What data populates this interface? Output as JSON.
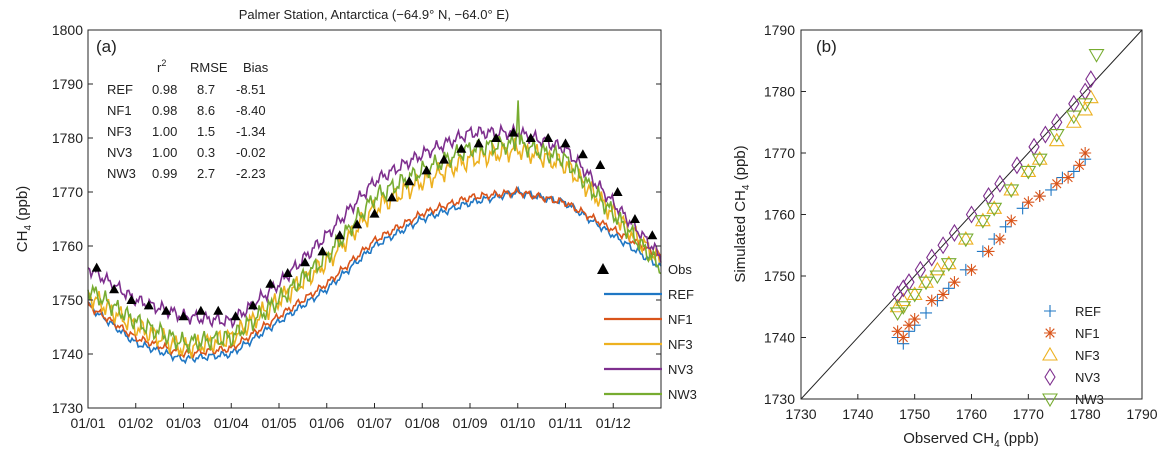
{
  "chart_data": [
    {
      "type": "line",
      "title": "Palmer Station, Antarctica (−64.9° N, −64.0° E)",
      "panel_label": "(a)",
      "xlabel": "",
      "ylabel_main": "CH",
      "ylabel_sub": "4",
      "ylabel_unit": " (ppb)",
      "ylim": [
        1730,
        1800
      ],
      "yticks": [
        "1730",
        "1740",
        "1750",
        "1760",
        "1770",
        "1780",
        "1790",
        "1800"
      ],
      "categories": [
        "01/01",
        "01/02",
        "01/03",
        "01/04",
        "01/05",
        "01/06",
        "01/07",
        "01/08",
        "01/09",
        "01/10",
        "01/11",
        "01/12"
      ],
      "x_months": [
        0,
        1,
        2,
        3,
        4,
        5,
        6,
        7,
        8,
        9,
        10,
        11
      ],
      "series": [
        {
          "name": "REF",
          "color": "#1f77c4",
          "values": [
            1749,
            1742,
            1739,
            1740,
            1746,
            1752,
            1760,
            1765,
            1768,
            1770,
            1768,
            1762
          ]
        },
        {
          "name": "NF1",
          "color": "#d9541a",
          "values": [
            1749,
            1743,
            1740,
            1741,
            1747,
            1753,
            1761,
            1766,
            1769,
            1770,
            1768,
            1763
          ]
        },
        {
          "name": "NF3",
          "color": "#edb120",
          "values": [
            1751,
            1745,
            1741,
            1743,
            1750,
            1757,
            1767,
            1772,
            1776,
            1778,
            1775,
            1766
          ]
        },
        {
          "name": "NV3",
          "color": "#7e2f8e",
          "values": [
            1756,
            1750,
            1747,
            1746,
            1753,
            1762,
            1772,
            1777,
            1781,
            1781,
            1778,
            1768
          ]
        },
        {
          "name": "NW3",
          "color": "#77ac30",
          "values": [
            1752,
            1746,
            1742,
            1743,
            1750,
            1758,
            1769,
            1774,
            1778,
            1779,
            1776,
            1766
          ]
        }
      ],
      "obs": {
        "name": "Obs",
        "values": [
          1756,
          1752,
          1750,
          1749,
          1748,
          1747,
          1748,
          1748,
          1747,
          1749,
          1753,
          1755,
          1757,
          1759,
          1762,
          1764,
          1766,
          1769,
          1772,
          1774,
          1776,
          1778,
          1779,
          1780,
          1781,
          1780,
          1780,
          1779,
          1777,
          1775,
          1770,
          1765,
          1762
        ]
      },
      "stats_table": {
        "headers": [
          "",
          "r2",
          "RMSE",
          "Bias"
        ],
        "rows": [
          [
            "REF",
            "0.98",
            "8.7",
            "-8.51"
          ],
          [
            "NF1",
            "0.98",
            "8.6",
            "-8.40"
          ],
          [
            "NF3",
            "1.00",
            "1.5",
            "-1.34"
          ],
          [
            "NV3",
            "1.00",
            "0.3",
            "-0.02"
          ],
          [
            "NW3",
            "0.99",
            "2.7",
            "-2.23"
          ]
        ]
      },
      "legend": [
        "Obs",
        "REF",
        "NF1",
        "NF3",
        "NV3",
        "NW3"
      ],
      "legend_position": "bottom-right",
      "grid": false
    },
    {
      "type": "scatter",
      "panel_label": "(b)",
      "xlabel": "Observed CH",
      "xlabel_sub": "4",
      "xlabel_unit": " (ppb)",
      "ylabel": "Simulated CH",
      "ylabel_sub": "4",
      "ylabel_unit": " (ppb)",
      "xlim": [
        1730,
        1790
      ],
      "ylim": [
        1730,
        1790
      ],
      "xticks": [
        "1730",
        "1740",
        "1750",
        "1760",
        "1770",
        "1780",
        "1790"
      ],
      "yticks": [
        "1730",
        "1740",
        "1750",
        "1760",
        "1770",
        "1780",
        "1790"
      ],
      "one_to_one_line": true,
      "series": [
        {
          "name": "REF",
          "marker": "plus",
          "color": "#1f77c4",
          "x": [
            1747,
            1748,
            1749,
            1750,
            1752,
            1754,
            1756,
            1759,
            1762,
            1764,
            1766,
            1769,
            1772,
            1774,
            1776,
            1778,
            1780
          ],
          "y": [
            1740,
            1739,
            1741,
            1742,
            1744,
            1746,
            1748,
            1751,
            1754,
            1756,
            1758,
            1761,
            1763,
            1764,
            1766,
            1767,
            1769
          ]
        },
        {
          "name": "NF1",
          "marker": "asterisk",
          "color": "#d9541a",
          "x": [
            1747,
            1748,
            1749,
            1750,
            1753,
            1755,
            1757,
            1760,
            1763,
            1765,
            1767,
            1770,
            1772,
            1775,
            1777,
            1779,
            1780
          ],
          "y": [
            1741,
            1740,
            1742,
            1743,
            1746,
            1747,
            1749,
            1751,
            1754,
            1756,
            1759,
            1762,
            1763,
            1765,
            1766,
            1768,
            1770
          ]
        },
        {
          "name": "NF3",
          "marker": "triangle-up",
          "color": "#edb120",
          "x": [
            1747,
            1748,
            1750,
            1752,
            1754,
            1756,
            1759,
            1762,
            1764,
            1767,
            1770,
            1772,
            1775,
            1778,
            1780,
            1781
          ],
          "y": [
            1745,
            1746,
            1747,
            1749,
            1751,
            1752,
            1756,
            1759,
            1761,
            1764,
            1767,
            1769,
            1772,
            1775,
            1777,
            1779
          ]
        },
        {
          "name": "NV3",
          "marker": "diamond",
          "color": "#7e2f8e",
          "x": [
            1747,
            1748,
            1749,
            1751,
            1753,
            1755,
            1757,
            1760,
            1763,
            1765,
            1768,
            1771,
            1773,
            1775,
            1778,
            1780,
            1781
          ],
          "y": [
            1747,
            1748,
            1749,
            1751,
            1753,
            1755,
            1757,
            1760,
            1763,
            1765,
            1768,
            1771,
            1773,
            1775,
            1778,
            1780,
            1782
          ]
        },
        {
          "name": "NW3",
          "marker": "triangle-down",
          "color": "#77ac30",
          "x": [
            1747,
            1748,
            1750,
            1752,
            1754,
            1756,
            1759,
            1762,
            1764,
            1767,
            1770,
            1772,
            1775,
            1778,
            1780,
            1782
          ],
          "y": [
            1744,
            1745,
            1747,
            1749,
            1750,
            1752,
            1756,
            1759,
            1761,
            1764,
            1767,
            1769,
            1773,
            1776,
            1778,
            1786
          ]
        }
      ],
      "legend": [
        "REF",
        "NF1",
        "NF3",
        "NV3",
        "NW3"
      ],
      "legend_position": "bottom-right",
      "grid": false
    }
  ]
}
